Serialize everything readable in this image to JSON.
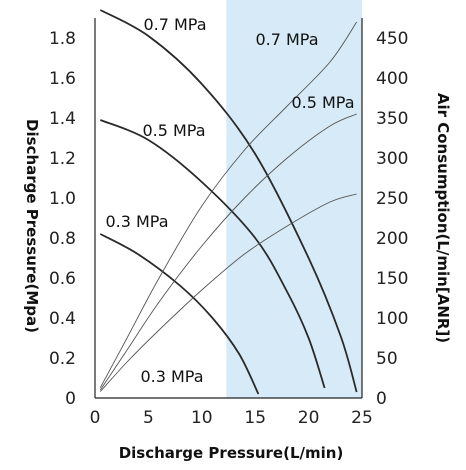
{
  "chart_data": {
    "type": "line",
    "xlabel": "Discharge Pressure(L/min)",
    "ylabel": "Discharge Pressure(Mpa)",
    "y2label": "Air Consumption(L/min[ANR])",
    "xlim": [
      0,
      25
    ],
    "ylim": [
      0,
      1.8
    ],
    "y2lim": [
      0,
      450
    ],
    "x_ticks": [
      "0",
      "5",
      "10",
      "15",
      "20",
      "25"
    ],
    "y_ticks": [
      "0",
      "0.2",
      "0.4",
      "0.6",
      "0.8",
      "1.0",
      "1.2",
      "1.4",
      "1.6",
      "1.8"
    ],
    "y2_ticks": [
      "0",
      "50",
      "100",
      "150",
      "200",
      "250",
      "300",
      "350",
      "400",
      "450"
    ],
    "highlight_region": {
      "x_from": 12.3,
      "x_to": 25,
      "color": "#d6ebf7"
    },
    "grid": false,
    "series": [
      {
        "name": "0.7 MPa",
        "axis": "left",
        "style": "thick",
        "color": "#2a2a2a",
        "points": [
          [
            0.5,
            1.94
          ],
          [
            5,
            1.81
          ],
          [
            10,
            1.57
          ],
          [
            15,
            1.22
          ],
          [
            20,
            0.7
          ],
          [
            23,
            0.31
          ],
          [
            24.5,
            0.03
          ]
        ]
      },
      {
        "name": "0.5 MPa",
        "axis": "left",
        "style": "thick",
        "color": "#2a2a2a",
        "points": [
          [
            0.5,
            1.39
          ],
          [
            5,
            1.29
          ],
          [
            10,
            1.08
          ],
          [
            15,
            0.8
          ],
          [
            18,
            0.53
          ],
          [
            20,
            0.3
          ],
          [
            21.5,
            0.05
          ]
        ]
      },
      {
        "name": "0.3 MPa",
        "axis": "left",
        "style": "thick",
        "color": "#2a2a2a",
        "points": [
          [
            0.5,
            0.82
          ],
          [
            4,
            0.72
          ],
          [
            8,
            0.56
          ],
          [
            11,
            0.4
          ],
          [
            13.5,
            0.22
          ],
          [
            15.3,
            0.02
          ]
        ]
      },
      {
        "name": "0.7 MPa",
        "axis": "right",
        "style": "thin",
        "color": "#555555",
        "points": [
          [
            0.5,
            13
          ],
          [
            3,
            75
          ],
          [
            6,
            150
          ],
          [
            10,
            240
          ],
          [
            14,
            310
          ],
          [
            18,
            365
          ],
          [
            22,
            420
          ],
          [
            24.5,
            470
          ]
        ]
      },
      {
        "name": "0.5 MPa",
        "axis": "right",
        "style": "thin",
        "color": "#555555",
        "points": [
          [
            0.5,
            10
          ],
          [
            3,
            60
          ],
          [
            6,
            120
          ],
          [
            10,
            190
          ],
          [
            14,
            250
          ],
          [
            18,
            300
          ],
          [
            22,
            340
          ],
          [
            24.5,
            355
          ]
        ]
      },
      {
        "name": "0.3 MPa",
        "axis": "right",
        "style": "thin",
        "color": "#555555",
        "points": [
          [
            0.5,
            8
          ],
          [
            3,
            45
          ],
          [
            6,
            85
          ],
          [
            10,
            135
          ],
          [
            14,
            180
          ],
          [
            18,
            215
          ],
          [
            22,
            245
          ],
          [
            24.5,
            255
          ]
        ]
      }
    ],
    "annotations": [
      "0.7 MPa",
      "0.5 MPa",
      "0.3 MPa",
      "0.7 MPa",
      "0.5 MPa",
      "0.3 MPa"
    ]
  }
}
